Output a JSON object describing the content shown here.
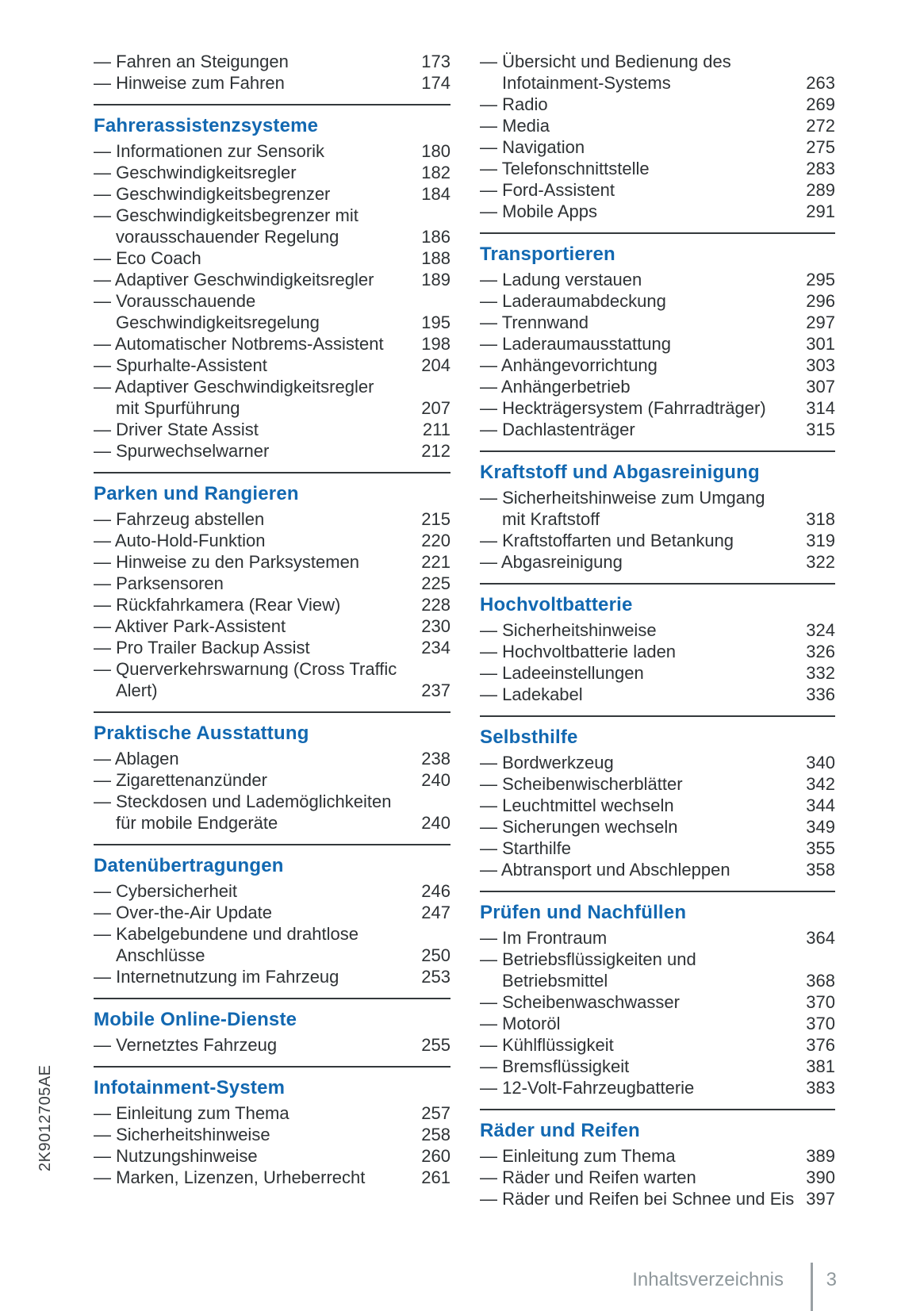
{
  "document": {
    "side_code": "2K9012705AE",
    "footer": {
      "label": "Inhaltsverzeichnis",
      "page_number": "3"
    }
  },
  "colors": {
    "heading_blue": "#1268b1",
    "body_text": "#2e3235",
    "rule_dark": "#33383b",
    "footer_gray": "#8f989c"
  },
  "toc": {
    "columns": [
      {
        "sections": [
          {
            "title": null,
            "items": [
              {
                "label": "Fahren an Steigungen",
                "page": "173"
              },
              {
                "label": "Hinweise zum Fahren",
                "page": "174"
              }
            ]
          },
          {
            "title": "Fahrerassistenzsysteme",
            "items": [
              {
                "label": "Informationen zur Sensorik",
                "page": "180"
              },
              {
                "label": "Geschwindigkeitsregler",
                "page": "182"
              },
              {
                "label": "Geschwindigkeitsbegrenzer",
                "page": "184"
              },
              {
                "label": "Geschwindigkeitsbegrenzer mit\nvorausschauender Regelung",
                "page": "186"
              },
              {
                "label": "Eco Coach",
                "page": "188"
              },
              {
                "label": "Adaptiver Geschwindigkeitsregler",
                "page": "189"
              },
              {
                "label": "Vorausschauende\nGeschwindigkeitsregelung",
                "page": "195"
              },
              {
                "label": "Automatischer Notbrems-Assistent",
                "page": "198"
              },
              {
                "label": "Spurhalte-Assistent",
                "page": "204"
              },
              {
                "label": "Adaptiver Geschwindigkeitsregler\nmit Spurführung",
                "page": "207"
              },
              {
                "label": "Driver State Assist",
                "page": "211"
              },
              {
                "label": "Spurwechselwarner",
                "page": "212"
              }
            ]
          },
          {
            "title": "Parken und Rangieren",
            "items": [
              {
                "label": "Fahrzeug abstellen",
                "page": "215"
              },
              {
                "label": "Auto-Hold-Funktion",
                "page": "220"
              },
              {
                "label": "Hinweise zu den Parksystemen",
                "page": "221"
              },
              {
                "label": "Parksensoren",
                "page": "225"
              },
              {
                "label": "Rückfahrkamera (Rear View)",
                "page": "228"
              },
              {
                "label": "Aktiver Park-Assistent",
                "page": "230"
              },
              {
                "label": "Pro Trailer Backup Assist",
                "page": "234"
              },
              {
                "label": "Querverkehrswarnung (Cross Traffic\nAlert)",
                "page": "237"
              }
            ]
          },
          {
            "title": "Praktische Ausstattung",
            "items": [
              {
                "label": "Ablagen",
                "page": "238"
              },
              {
                "label": "Zigarettenanzünder",
                "page": "240"
              },
              {
                "label": "Steckdosen und Lademöglichkeiten\nfür mobile Endgeräte",
                "page": "240"
              }
            ]
          },
          {
            "title": "Datenübertragungen",
            "items": [
              {
                "label": "Cybersicherheit",
                "page": "246"
              },
              {
                "label": "Over-the-Air Update",
                "page": "247"
              },
              {
                "label": "Kabelgebundene und drahtlose\nAnschlüsse",
                "page": "250"
              },
              {
                "label": "Internetnutzung im Fahrzeug",
                "page": "253"
              }
            ]
          },
          {
            "title": "Mobile Online-Dienste",
            "items": [
              {
                "label": "Vernetztes Fahrzeug",
                "page": "255"
              }
            ]
          },
          {
            "title": "Infotainment-System",
            "items": [
              {
                "label": "Einleitung zum Thema",
                "page": "257"
              },
              {
                "label": "Sicherheitshinweise",
                "page": "258"
              },
              {
                "label": "Nutzungshinweise",
                "page": "260"
              },
              {
                "label": "Marken, Lizenzen, Urheberrecht",
                "page": "261"
              }
            ]
          }
        ]
      },
      {
        "sections": [
          {
            "title": null,
            "items": [
              {
                "label": "Übersicht und Bedienung des\nInfotainment-Systems",
                "page": "263"
              },
              {
                "label": "Radio",
                "page": "269"
              },
              {
                "label": "Media",
                "page": "272"
              },
              {
                "label": "Navigation",
                "page": "275"
              },
              {
                "label": "Telefonschnittstelle",
                "page": "283"
              },
              {
                "label": "Ford-Assistent",
                "page": "289"
              },
              {
                "label": "Mobile Apps",
                "page": "291"
              }
            ]
          },
          {
            "title": "Transportieren",
            "items": [
              {
                "label": "Ladung verstauen",
                "page": "295"
              },
              {
                "label": "Laderaumabdeckung",
                "page": "296"
              },
              {
                "label": "Trennwand",
                "page": "297"
              },
              {
                "label": "Laderaumausstattung",
                "page": "301"
              },
              {
                "label": "Anhängevorrichtung",
                "page": "303"
              },
              {
                "label": "Anhängerbetrieb",
                "page": "307"
              },
              {
                "label": "Heckträgersystem (Fahrradträger)",
                "page": "314"
              },
              {
                "label": "Dachlastenträger",
                "page": "315"
              }
            ]
          },
          {
            "title": "Kraftstoff und Abgasreinigung",
            "items": [
              {
                "label": "Sicherheitshinweise zum Umgang\nmit Kraftstoff",
                "page": "318"
              },
              {
                "label": "Kraftstoffarten und Betankung",
                "page": "319"
              },
              {
                "label": "Abgasreinigung",
                "page": "322"
              }
            ]
          },
          {
            "title": "Hochvoltbatterie",
            "items": [
              {
                "label": "Sicherheitshinweise",
                "page": "324"
              },
              {
                "label": "Hochvoltbatterie laden",
                "page": "326"
              },
              {
                "label": "Ladeeinstellungen",
                "page": "332"
              },
              {
                "label": "Ladekabel",
                "page": "336"
              }
            ]
          },
          {
            "title": "Selbsthilfe",
            "items": [
              {
                "label": "Bordwerkzeug",
                "page": "340"
              },
              {
                "label": "Scheibenwischerblätter",
                "page": "342"
              },
              {
                "label": "Leuchtmittel wechseln",
                "page": "344"
              },
              {
                "label": "Sicherungen wechseln",
                "page": "349"
              },
              {
                "label": "Starthilfe",
                "page": "355"
              },
              {
                "label": "Abtransport und Abschleppen",
                "page": "358"
              }
            ]
          },
          {
            "title": "Prüfen und Nachfüllen",
            "items": [
              {
                "label": "Im Frontraum",
                "page": "364"
              },
              {
                "label": "Betriebsflüssigkeiten und\nBetriebsmittel",
                "page": "368"
              },
              {
                "label": "Scheibenwaschwasser",
                "page": "370"
              },
              {
                "label": "Motoröl",
                "page": "370"
              },
              {
                "label": "Kühlflüssigkeit",
                "page": "376"
              },
              {
                "label": "Bremsflüssigkeit",
                "page": "381"
              },
              {
                "label": "12-Volt-Fahrzeugbatterie",
                "page": "383"
              }
            ]
          },
          {
            "title": "Räder und Reifen",
            "items": [
              {
                "label": "Einleitung zum Thema",
                "page": "389"
              },
              {
                "label": "Räder und Reifen warten",
                "page": "390"
              },
              {
                "label": "Räder und Reifen bei Schnee und Eis",
                "page": "397"
              }
            ]
          }
        ]
      }
    ]
  }
}
